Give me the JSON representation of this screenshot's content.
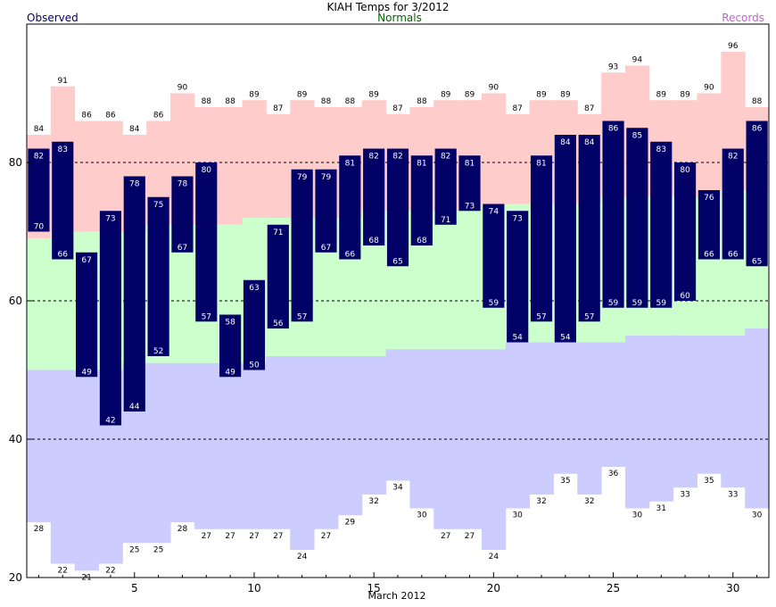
{
  "chart_data": {
    "type": "bar",
    "title": "KIAH Temps for 3/2012",
    "legend": {
      "observed": "Observed",
      "normals": "Normals",
      "records": "Records"
    },
    "xlabel": "March 2012",
    "ylabel": "",
    "ylim": [
      20,
      100
    ],
    "xlim": [
      0.5,
      31.5
    ],
    "y_gridlines": [
      40,
      60,
      80
    ],
    "y_ticks": [
      20,
      40,
      60,
      80
    ],
    "x_ticks": [
      5,
      10,
      15,
      20,
      25,
      30
    ],
    "days": [
      1,
      2,
      3,
      4,
      5,
      6,
      7,
      8,
      9,
      10,
      11,
      12,
      13,
      14,
      15,
      16,
      17,
      18,
      19,
      20,
      21,
      22,
      23,
      24,
      25,
      26,
      27,
      28,
      29,
      30,
      31
    ],
    "observed_high": [
      82,
      83,
      67,
      73,
      78,
      75,
      78,
      80,
      58,
      63,
      71,
      79,
      79,
      81,
      82,
      82,
      81,
      82,
      81,
      74,
      73,
      81,
      84,
      84,
      86,
      85,
      83,
      80,
      76,
      82,
      86
    ],
    "observed_low": [
      70,
      66,
      49,
      42,
      44,
      52,
      67,
      57,
      49,
      50,
      56,
      57,
      67,
      66,
      68,
      65,
      68,
      71,
      73,
      59,
      54,
      57,
      54,
      57,
      59,
      59,
      59,
      60,
      66,
      66,
      65
    ],
    "normal_high": [
      69,
      70,
      70,
      70,
      70,
      71,
      71,
      71,
      71,
      72,
      72,
      72,
      72,
      72,
      73,
      73,
      73,
      73,
      73,
      74,
      74,
      74,
      74,
      74,
      75,
      75,
      75,
      75,
      75,
      76,
      76
    ],
    "normal_low": [
      50,
      50,
      50,
      50,
      51,
      51,
      51,
      51,
      51,
      51,
      52,
      52,
      52,
      52,
      52,
      53,
      53,
      53,
      53,
      53,
      54,
      54,
      54,
      54,
      54,
      55,
      55,
      55,
      55,
      55,
      56
    ],
    "record_high": [
      84,
      91,
      86,
      86,
      84,
      86,
      90,
      88,
      88,
      89,
      87,
      89,
      88,
      88,
      89,
      87,
      88,
      89,
      89,
      90,
      87,
      89,
      89,
      87,
      93,
      94,
      89,
      89,
      90,
      96,
      88
    ],
    "record_low": [
      28,
      22,
      21,
      22,
      25,
      25,
      28,
      27,
      27,
      27,
      27,
      24,
      27,
      29,
      32,
      34,
      30,
      27,
      27,
      24,
      30,
      32,
      35,
      32,
      36,
      30,
      31,
      33,
      35,
      33,
      30
    ],
    "colors": {
      "observed": "#000066",
      "normals": "#006600",
      "records": "#bb66cc",
      "record_high_band": "#ffcccc",
      "normal_band": "#ccffcc",
      "record_low_band": "#ccccff",
      "frame": "#000000"
    }
  }
}
